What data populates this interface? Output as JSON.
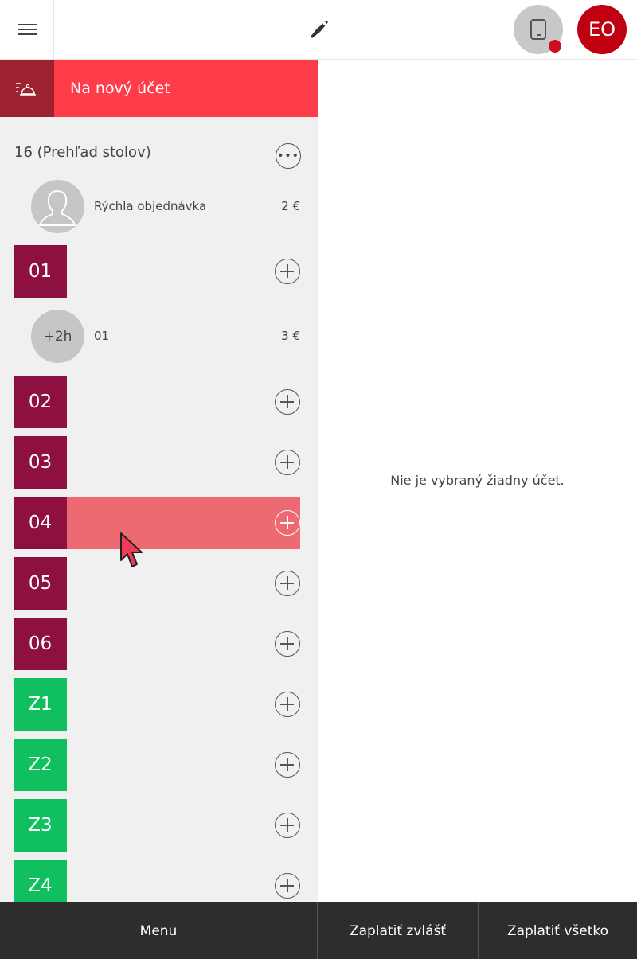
{
  "header": {
    "avatar_initials": "EO"
  },
  "new_account": {
    "label": "Na nový účet"
  },
  "section": {
    "title": "16 (Prehľad stolov)"
  },
  "accounts": [
    {
      "name": "Rýchla objednávka",
      "price": "2 €",
      "badge": ""
    },
    {
      "name": "01",
      "price": "3 €",
      "badge": "+2h"
    }
  ],
  "tables": [
    {
      "label": "01",
      "color": "#8e1040"
    },
    {
      "label": "02",
      "color": "#8e1040"
    },
    {
      "label": "03",
      "color": "#8e1040"
    },
    {
      "label": "04",
      "color": "#8e1040"
    },
    {
      "label": "05",
      "color": "#8e1040"
    },
    {
      "label": "06",
      "color": "#8e1040"
    },
    {
      "label": "Z1",
      "color": "#10c060"
    },
    {
      "label": "Z2",
      "color": "#10c060"
    },
    {
      "label": "Z3",
      "color": "#10c060"
    },
    {
      "label": "Z4",
      "color": "#10c060"
    }
  ],
  "main": {
    "empty_text": "Nie je vybraný žiadny účet."
  },
  "footer": {
    "menu": "Menu",
    "pay_separately": "Zaplatiť zvlášť",
    "pay_all": "Zaplatiť všetko"
  },
  "colors": {
    "accent": "#ff3d4a",
    "highlight": "#ee6a72"
  }
}
